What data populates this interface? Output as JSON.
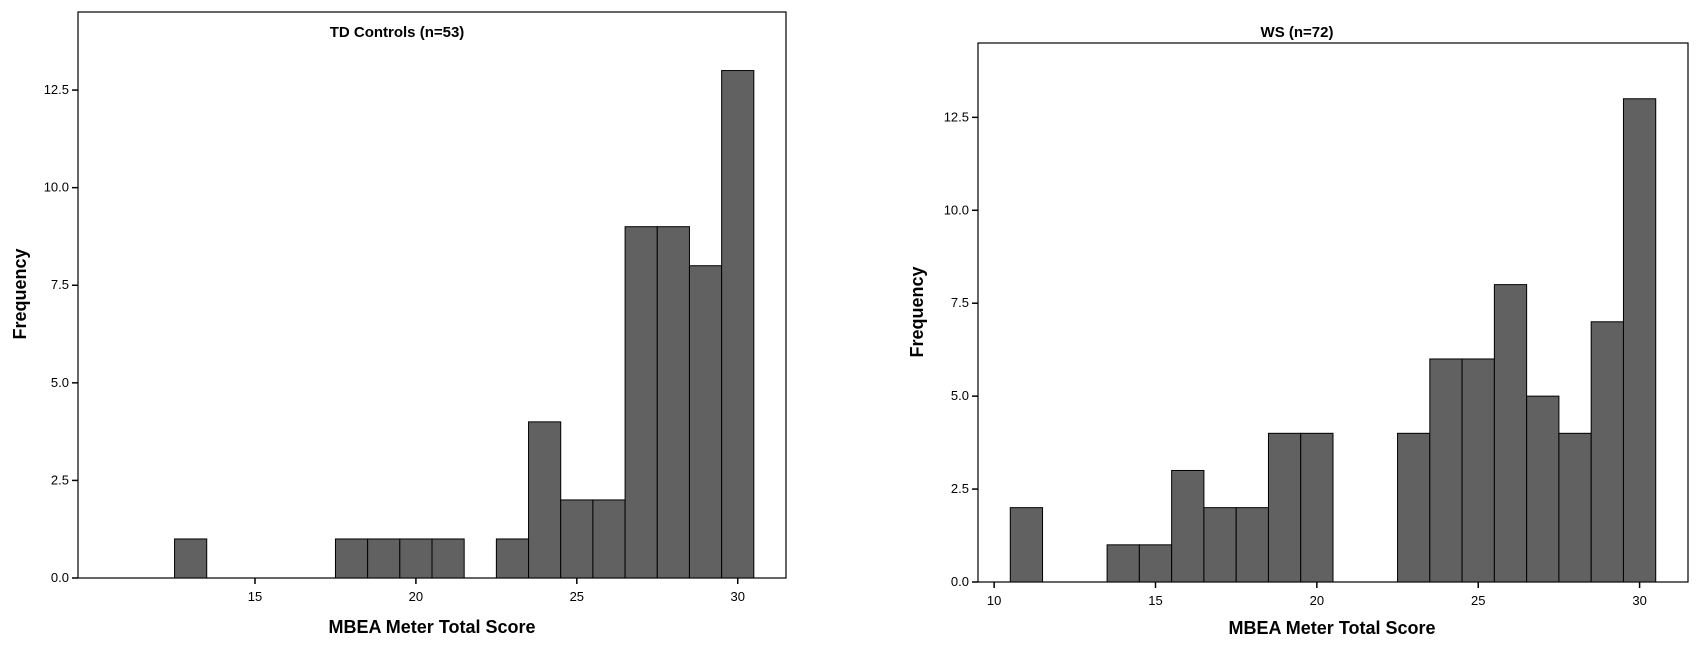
{
  "chart_data": [
    {
      "type": "bar",
      "title": "TD Controls (n=53)",
      "xlabel": "MBEA Meter Total Score",
      "ylabel": "Frequency",
      "xlim": [
        9.5,
        31.5
      ],
      "ylim": [
        0,
        14.5
      ],
      "x_ticks": [
        15,
        20,
        25,
        30
      ],
      "x_tick_labels": [
        "15",
        "20",
        "25",
        "30"
      ],
      "y_ticks": [
        0,
        2.5,
        5,
        7.5,
        10,
        12.5
      ],
      "y_tick_labels": [
        "0.0",
        "2.5",
        "5.0",
        "7.5",
        "10.0",
        "12.5"
      ],
      "bar_width": 1,
      "x": [
        13,
        18,
        19,
        20,
        21,
        23,
        24,
        25,
        26,
        27,
        28,
        29,
        30
      ],
      "values": [
        1,
        1,
        1,
        1,
        1,
        1,
        4,
        2,
        2,
        9,
        9,
        8,
        13
      ],
      "bar_color": "#616161",
      "grid": false
    },
    {
      "type": "bar",
      "title": "WS (n=72)",
      "xlabel": "MBEA Meter Total Score",
      "ylabel": "Frequency",
      "xlim": [
        9.5,
        31.5
      ],
      "ylim": [
        0,
        14.5
      ],
      "x_ticks": [
        10,
        15,
        20,
        25,
        30
      ],
      "x_tick_labels": [
        "10",
        "15",
        "20",
        "25",
        "30"
      ],
      "y_ticks": [
        0,
        2.5,
        5,
        7.5,
        10,
        12.5
      ],
      "y_tick_labels": [
        "0.0",
        "2.5",
        "5.0",
        "7.5",
        "10.0",
        "12.5"
      ],
      "bar_width": 1,
      "x": [
        11,
        14,
        15,
        16,
        17,
        18,
        19,
        20,
        23,
        24,
        25,
        26,
        27,
        28,
        29,
        30
      ],
      "values": [
        2,
        1,
        1,
        3,
        2,
        2,
        4,
        4,
        4,
        6,
        6,
        8,
        5,
        4,
        7,
        13
      ],
      "bar_color": "#616161",
      "grid": false
    }
  ]
}
